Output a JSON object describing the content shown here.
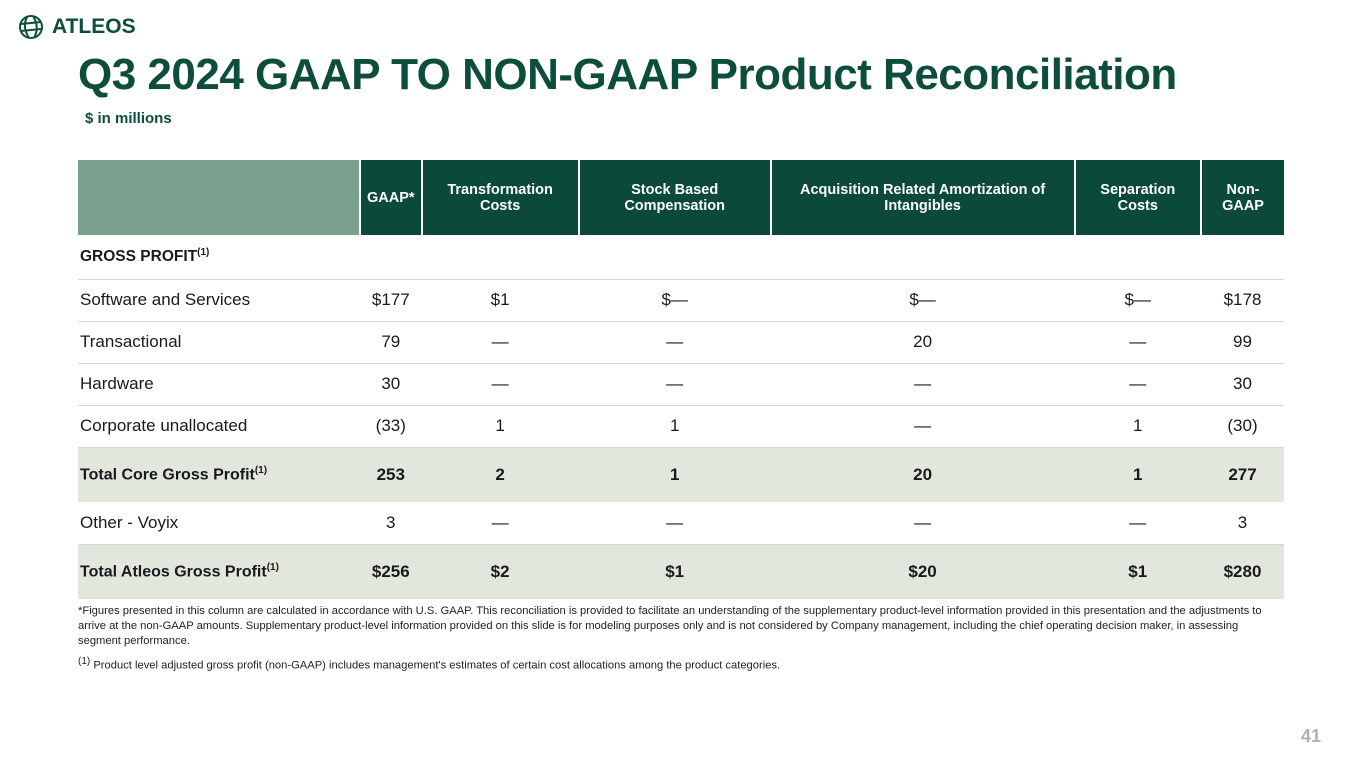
{
  "brand": "ATLEOS",
  "title": "Q3 2024 GAAP TO NON-GAAP Product Reconciliation",
  "subtitle": "$ in millions",
  "headers": [
    "GAAP*",
    "Transformation Costs",
    "Stock Based Compensation",
    "Acquisition Related Amortization of Intangibles",
    "Separation Costs",
    "Non-GAAP"
  ],
  "section": {
    "label": "GROSS PROFIT",
    "sup": "(1)"
  },
  "rows": [
    {
      "label": "Software and Services",
      "values": [
        "$177",
        "$1",
        "$—",
        "$—",
        "$—",
        "$178"
      ]
    },
    {
      "label": "Transactional",
      "values": [
        "79",
        "—",
        "—",
        "20",
        "—",
        "99"
      ]
    },
    {
      "label": "Hardware",
      "values": [
        "30",
        "—",
        "—",
        "—",
        "—",
        "30"
      ]
    },
    {
      "label": "Corporate unallocated",
      "values": [
        "(33)",
        "1",
        "1",
        "—",
        "1",
        "(30)"
      ]
    },
    {
      "label": "Total Core Gross Profit",
      "sup": "(1)",
      "values": [
        "253",
        "2",
        "1",
        "20",
        "1",
        "277"
      ]
    },
    {
      "label": "Other - Voyix",
      "values": [
        "3",
        "—",
        "—",
        "—",
        "—",
        "3"
      ]
    },
    {
      "label": "Total Atleos Gross Profit",
      "sup": "(1)",
      "values": [
        "$256",
        "$2",
        "$1",
        "$20",
        "$1",
        "$280"
      ]
    }
  ],
  "footnote1": "*Figures presented in this column are calculated in accordance with U.S. GAAP. This reconciliation is provided to facilitate an understanding of the supplementary product-level information provided  in this presentation and the adjustments to arrive at the non-GAAP amounts. Supplementary product-level information provided on this slide is for modeling purposes only and is not considered by Company management, including the chief operating decision maker, in assessing segment performance.",
  "footnote2_sup": "(1)",
  "footnote2": "Product level adjusted gross profit (non-GAAP) includes management's estimates of certain cost allocations among the product categories.",
  "page_number": "41"
}
